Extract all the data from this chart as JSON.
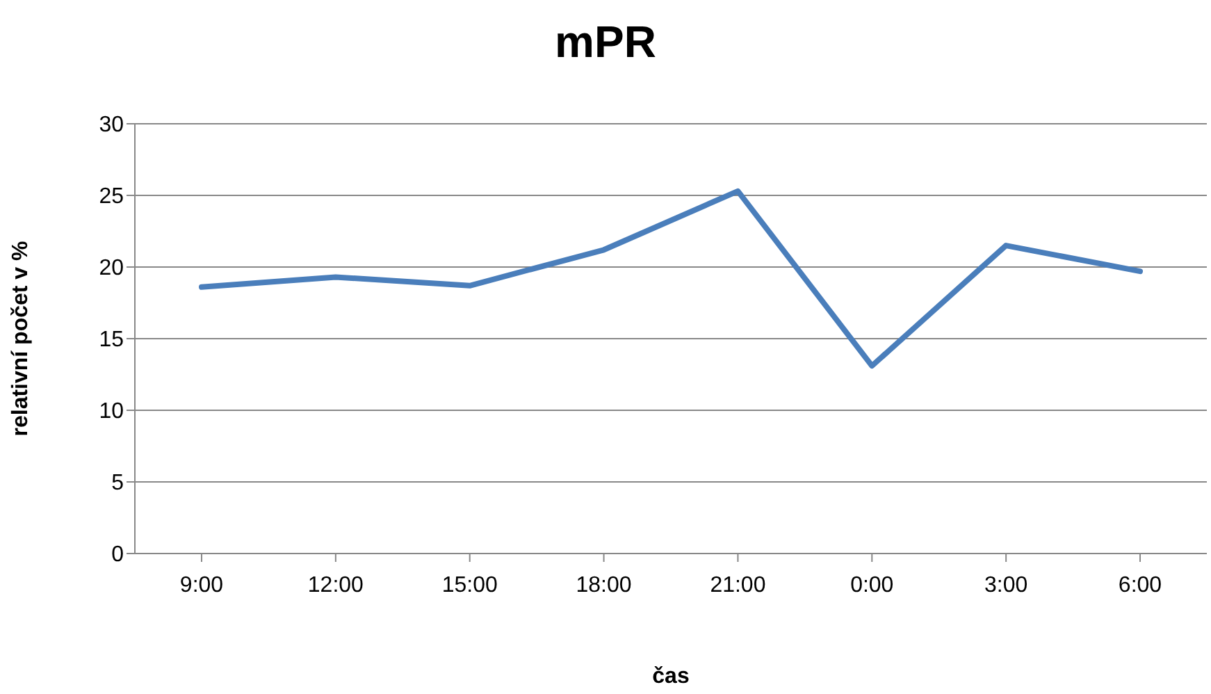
{
  "chart_data": {
    "type": "line",
    "title": "mPR",
    "xlabel": "čas",
    "ylabel": "relativní počet v %",
    "categories": [
      "9:00",
      "12:00",
      "15:00",
      "18:00",
      "21:00",
      "0:00",
      "3:00",
      "6:00"
    ],
    "series": [
      {
        "color": "#4a7ebb",
        "values": [
          18.6,
          19.3,
          18.7,
          21.2,
          25.3,
          13.1,
          21.5,
          19.7
        ]
      }
    ],
    "ylim": [
      0,
      30
    ],
    "yticks": [
      0,
      5,
      10,
      15,
      20,
      25,
      30
    ],
    "grid": "y",
    "legend": false
  }
}
